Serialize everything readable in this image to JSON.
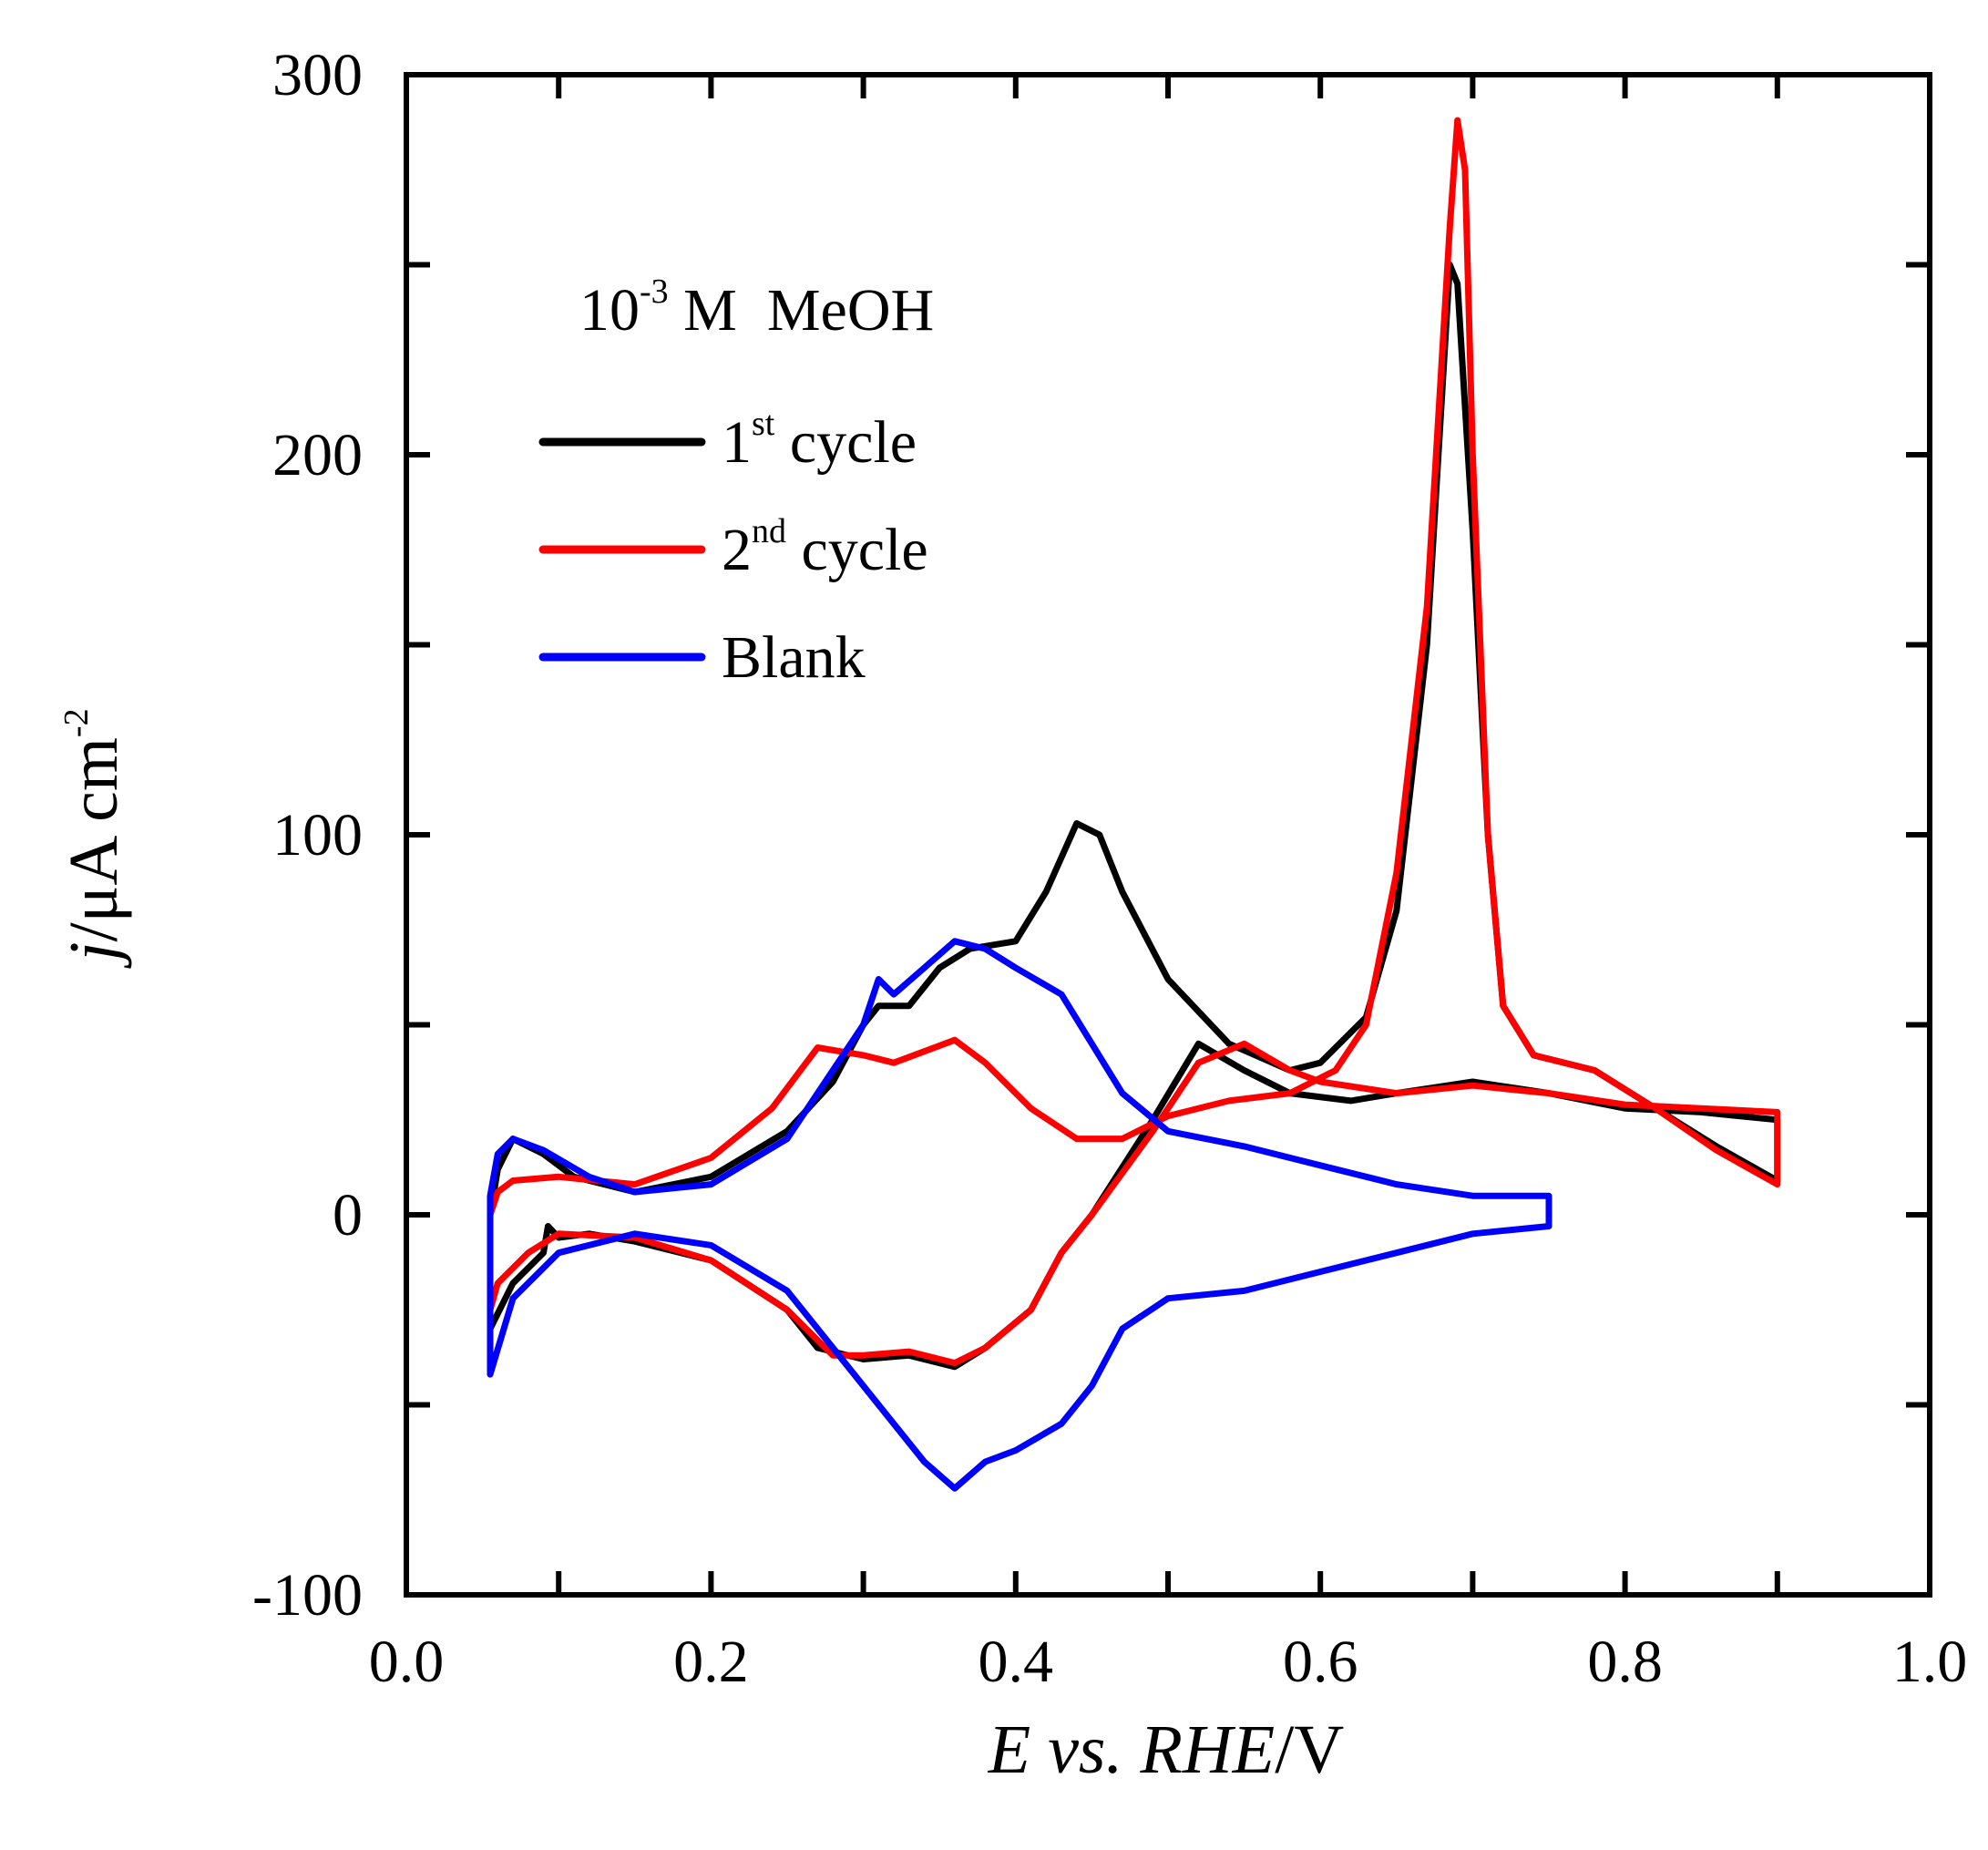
{
  "chart_data": {
    "type": "line",
    "title": "",
    "annotation": {
      "base": "10",
      "exponent": "-3",
      "suffix": " M  MeOH"
    },
    "xlabel": {
      "italic1": "E vs. RHE",
      "rest": "/V"
    },
    "ylabel": {
      "italic1": "j",
      "mid": "/μA cm",
      "exponent": "-2"
    },
    "xlim": [
      0.0,
      1.0
    ],
    "ylim": [
      -100,
      300
    ],
    "x_ticks": [
      0.0,
      0.2,
      0.4,
      0.6,
      0.8,
      1.0
    ],
    "x_tick_labels": [
      "0.0",
      "0.2",
      "0.4",
      "0.6",
      "0.8",
      "1.0"
    ],
    "y_ticks": [
      -100,
      0,
      100,
      200,
      300
    ],
    "y_tick_labels": [
      "-100",
      "0",
      "100",
      "200",
      "300"
    ],
    "legend_position": "top-left",
    "series": [
      {
        "name": "1st cycle",
        "label_base": "1",
        "label_sup": "st",
        "label_rest": " cycle",
        "color": "#000000",
        "points": [
          [
            0.055,
            -30
          ],
          [
            0.055,
            0
          ],
          [
            0.06,
            12
          ],
          [
            0.07,
            20
          ],
          [
            0.09,
            16
          ],
          [
            0.11,
            10
          ],
          [
            0.15,
            6
          ],
          [
            0.2,
            10
          ],
          [
            0.25,
            22
          ],
          [
            0.28,
            35
          ],
          [
            0.3,
            50
          ],
          [
            0.31,
            55
          ],
          [
            0.33,
            55
          ],
          [
            0.35,
            65
          ],
          [
            0.37,
            70
          ],
          [
            0.4,
            72
          ],
          [
            0.42,
            85
          ],
          [
            0.44,
            103
          ],
          [
            0.455,
            100
          ],
          [
            0.47,
            85
          ],
          [
            0.5,
            62
          ],
          [
            0.54,
            45
          ],
          [
            0.58,
            38
          ],
          [
            0.6,
            40
          ],
          [
            0.63,
            52
          ],
          [
            0.65,
            80
          ],
          [
            0.67,
            150
          ],
          [
            0.685,
            250
          ],
          [
            0.69,
            245
          ],
          [
            0.7,
            180
          ],
          [
            0.71,
            100
          ],
          [
            0.72,
            55
          ],
          [
            0.74,
            42
          ],
          [
            0.78,
            38
          ],
          [
            0.82,
            28
          ],
          [
            0.86,
            18
          ],
          [
            0.9,
            9
          ],
          [
            0.9,
            25
          ],
          [
            0.85,
            27
          ],
          [
            0.8,
            28
          ],
          [
            0.75,
            32
          ],
          [
            0.7,
            35
          ],
          [
            0.65,
            32
          ],
          [
            0.62,
            30
          ],
          [
            0.58,
            32
          ],
          [
            0.55,
            38
          ],
          [
            0.52,
            45
          ],
          [
            0.49,
            25
          ],
          [
            0.45,
            0
          ],
          [
            0.43,
            -10
          ],
          [
            0.41,
            -25
          ],
          [
            0.38,
            -35
          ],
          [
            0.36,
            -40
          ],
          [
            0.33,
            -37
          ],
          [
            0.3,
            -38
          ],
          [
            0.27,
            -35
          ],
          [
            0.25,
            -25
          ],
          [
            0.2,
            -12
          ],
          [
            0.15,
            -7
          ],
          [
            0.12,
            -5
          ],
          [
            0.1,
            -6
          ],
          [
            0.093,
            -3
          ],
          [
            0.09,
            -10
          ],
          [
            0.07,
            -18
          ],
          [
            0.055,
            -30
          ]
        ]
      },
      {
        "name": "2nd cycle",
        "label_base": "2",
        "label_sup": "nd",
        "label_rest": " cycle",
        "color": "#ff0000",
        "points": [
          [
            0.055,
            -25
          ],
          [
            0.055,
            0
          ],
          [
            0.06,
            6
          ],
          [
            0.07,
            9
          ],
          [
            0.1,
            10
          ],
          [
            0.15,
            8
          ],
          [
            0.2,
            15
          ],
          [
            0.24,
            28
          ],
          [
            0.27,
            44
          ],
          [
            0.3,
            42
          ],
          [
            0.32,
            40
          ],
          [
            0.34,
            43
          ],
          [
            0.36,
            46
          ],
          [
            0.38,
            40
          ],
          [
            0.41,
            28
          ],
          [
            0.44,
            20
          ],
          [
            0.47,
            20
          ],
          [
            0.5,
            26
          ],
          [
            0.54,
            30
          ],
          [
            0.58,
            32
          ],
          [
            0.61,
            38
          ],
          [
            0.63,
            50
          ],
          [
            0.65,
            90
          ],
          [
            0.67,
            160
          ],
          [
            0.685,
            260
          ],
          [
            0.69,
            288
          ],
          [
            0.695,
            275
          ],
          [
            0.7,
            200
          ],
          [
            0.71,
            100
          ],
          [
            0.72,
            55
          ],
          [
            0.74,
            42
          ],
          [
            0.78,
            38
          ],
          [
            0.82,
            28
          ],
          [
            0.86,
            17
          ],
          [
            0.9,
            8
          ],
          [
            0.9,
            27
          ],
          [
            0.85,
            28
          ],
          [
            0.8,
            29
          ],
          [
            0.75,
            32
          ],
          [
            0.7,
            34
          ],
          [
            0.65,
            32
          ],
          [
            0.6,
            35
          ],
          [
            0.58,
            38
          ],
          [
            0.55,
            45
          ],
          [
            0.52,
            40
          ],
          [
            0.49,
            22
          ],
          [
            0.45,
            0
          ],
          [
            0.43,
            -10
          ],
          [
            0.41,
            -25
          ],
          [
            0.38,
            -35
          ],
          [
            0.36,
            -39
          ],
          [
            0.33,
            -36
          ],
          [
            0.3,
            -37
          ],
          [
            0.28,
            -37
          ],
          [
            0.25,
            -25
          ],
          [
            0.2,
            -12
          ],
          [
            0.15,
            -6
          ],
          [
            0.1,
            -5
          ],
          [
            0.08,
            -10
          ],
          [
            0.06,
            -18
          ],
          [
            0.055,
            -25
          ]
        ]
      },
      {
        "name": "Blank",
        "label_base": "Blank",
        "label_sup": "",
        "label_rest": "",
        "color": "#0000ff",
        "points": [
          [
            0.055,
            -42
          ],
          [
            0.055,
            5
          ],
          [
            0.06,
            16
          ],
          [
            0.07,
            20
          ],
          [
            0.09,
            17
          ],
          [
            0.12,
            10
          ],
          [
            0.15,
            6
          ],
          [
            0.2,
            8
          ],
          [
            0.25,
            20
          ],
          [
            0.28,
            38
          ],
          [
            0.3,
            50
          ],
          [
            0.31,
            62
          ],
          [
            0.32,
            58
          ],
          [
            0.34,
            65
          ],
          [
            0.36,
            72
          ],
          [
            0.38,
            70
          ],
          [
            0.4,
            65
          ],
          [
            0.43,
            58
          ],
          [
            0.45,
            45
          ],
          [
            0.47,
            32
          ],
          [
            0.5,
            22
          ],
          [
            0.55,
            18
          ],
          [
            0.6,
            13
          ],
          [
            0.65,
            8
          ],
          [
            0.7,
            5
          ],
          [
            0.75,
            5
          ],
          [
            0.75,
            -3
          ],
          [
            0.7,
            -5
          ],
          [
            0.65,
            -10
          ],
          [
            0.6,
            -15
          ],
          [
            0.55,
            -20
          ],
          [
            0.5,
            -22
          ],
          [
            0.47,
            -30
          ],
          [
            0.45,
            -45
          ],
          [
            0.43,
            -55
          ],
          [
            0.4,
            -62
          ],
          [
            0.38,
            -65
          ],
          [
            0.36,
            -72
          ],
          [
            0.34,
            -65
          ],
          [
            0.32,
            -55
          ],
          [
            0.3,
            -45
          ],
          [
            0.28,
            -35
          ],
          [
            0.25,
            -20
          ],
          [
            0.2,
            -8
          ],
          [
            0.15,
            -5
          ],
          [
            0.1,
            -10
          ],
          [
            0.07,
            -22
          ],
          [
            0.055,
            -42
          ]
        ]
      }
    ]
  }
}
